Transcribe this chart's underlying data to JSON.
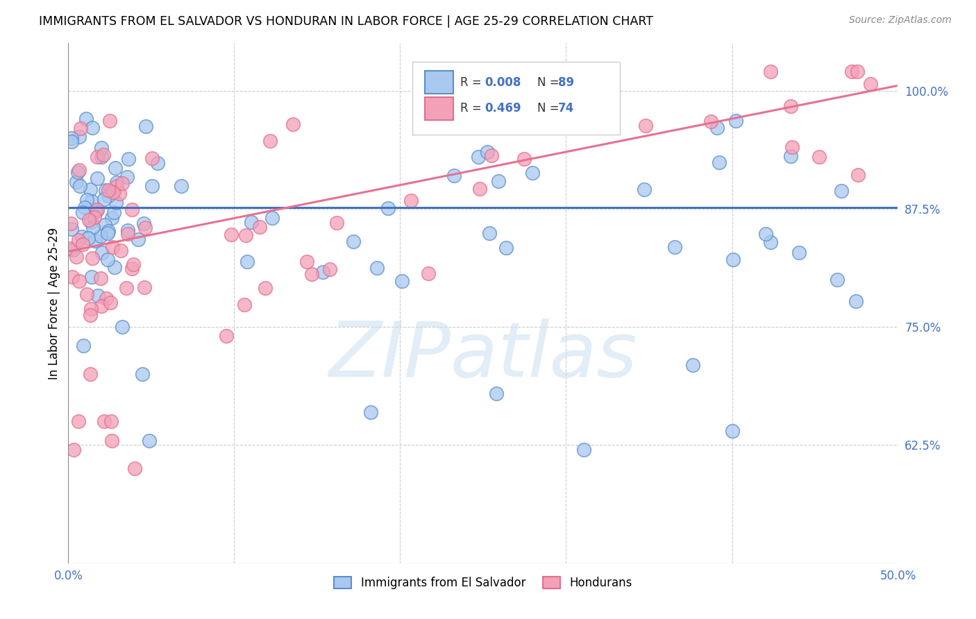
{
  "title": "IMMIGRANTS FROM EL SALVADOR VS HONDURAN IN LABOR FORCE | AGE 25-29 CORRELATION CHART",
  "source_text": "Source: ZipAtlas.com",
  "ylabel": "In Labor Force | Age 25-29",
  "xlim": [
    0.0,
    0.5
  ],
  "ylim": [
    0.5,
    1.05
  ],
  "ytick_labels": [
    "62.5%",
    "75.0%",
    "87.5%",
    "100.0%"
  ],
  "yticks": [
    0.625,
    0.75,
    0.875,
    1.0
  ],
  "xtick_labels": [
    "0.0%",
    "",
    "",
    "",
    "",
    "50.0%"
  ],
  "xticks": [
    0.0,
    0.1,
    0.2,
    0.3,
    0.4,
    0.5
  ],
  "legend_r_blue": "0.008",
  "legend_n_blue": "89",
  "legend_r_pink": "0.469",
  "legend_n_pink": "74",
  "blue_fill": "#A8C8F0",
  "pink_fill": "#F4A0B8",
  "blue_edge": "#5B8FC9",
  "pink_edge": "#E07090",
  "trend_blue_color": "#4472C4",
  "trend_pink_color": "#E87090",
  "watermark": "ZIPatlas",
  "legend_label_blue": "Immigrants from El Salvador",
  "legend_label_pink": "Hondurans",
  "blue_trend_y0": 0.876,
  "blue_trend_y1": 0.876,
  "pink_trend_y0": 0.83,
  "pink_trend_y1": 1.005
}
